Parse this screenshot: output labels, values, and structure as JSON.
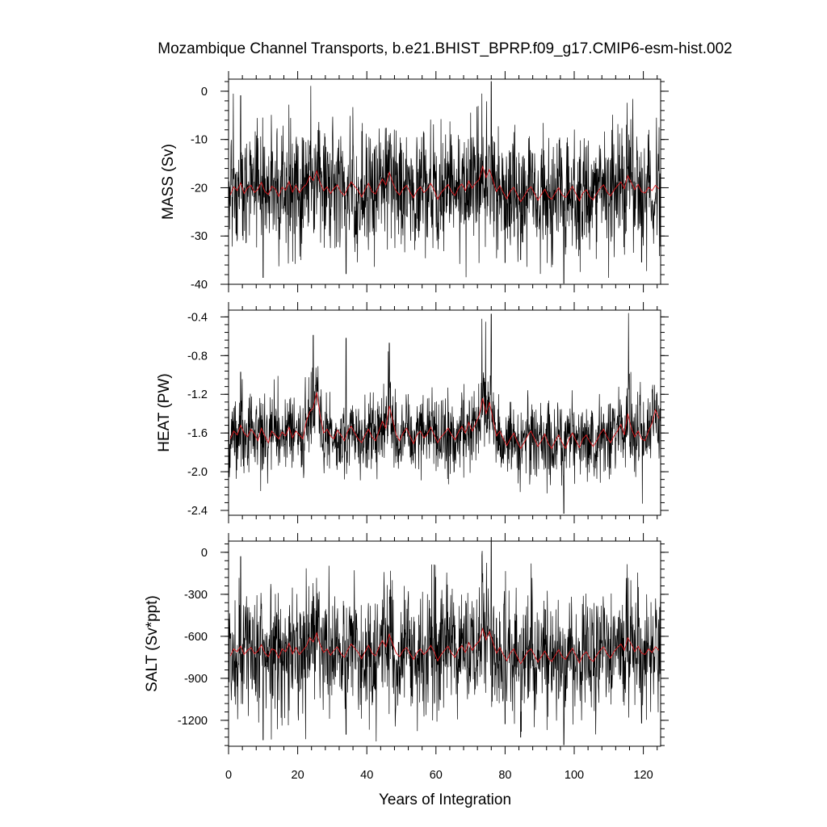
{
  "chart_data": {
    "type": "line",
    "title": "Mozambique Channel Transports, b.e21.BHIST_BPRP.f09_g17.CMIP6-esm-hist.002",
    "xlabel": "Years of Integration",
    "xlim": [
      0,
      125
    ],
    "xticks": [
      0,
      20,
      40,
      60,
      80,
      100,
      120
    ],
    "colors": {
      "monthly": "#000000",
      "annual": "#e0191e"
    },
    "panels": [
      {
        "ylabel": "MASS (Sv)",
        "ylim": [
          -40,
          2.5
        ],
        "yticks": [
          0,
          -10,
          -20,
          -30,
          -40
        ],
        "ytick_labels": [
          "0",
          "-10",
          "-20",
          "-30",
          "-40"
        ],
        "monthly_mean": -20.5,
        "monthly_sd": 6.5,
        "annual_values": [
          -21.5,
          -19.8,
          -20.6,
          -19.0,
          -21.2,
          -20.0,
          -19.5,
          -21.0,
          -20.3,
          -18.9,
          -20.8,
          -21.4,
          -19.7,
          -20.2,
          -21.8,
          -19.9,
          -20.5,
          -18.7,
          -20.9,
          -19.5,
          -21.0,
          -20.0,
          -19.3,
          -17.6,
          -18.5,
          -16.5,
          -19.0,
          -20.6,
          -19.8,
          -21.2,
          -20.1,
          -19.4,
          -20.9,
          -21.6,
          -20.0,
          -18.8,
          -19.7,
          -20.6,
          -21.9,
          -20.4,
          -19.1,
          -20.8,
          -21.3,
          -19.6,
          -18.2,
          -19.4,
          -16.8,
          -18.9,
          -20.7,
          -21.5,
          -20.2,
          -19.5,
          -20.9,
          -22.1,
          -20.6,
          -19.8,
          -21.0,
          -20.3,
          -19.1,
          -20.5,
          -22.4,
          -21.0,
          -20.2,
          -19.3,
          -20.8,
          -21.6,
          -20.0,
          -19.2,
          -20.6,
          -18.6,
          -20.1,
          -19.0,
          -18.3,
          -15.6,
          -17.9,
          -16.2,
          -18.5,
          -20.8,
          -19.6,
          -21.0,
          -22.3,
          -20.7,
          -19.9,
          -21.4,
          -22.9,
          -21.8,
          -20.5,
          -19.8,
          -21.2,
          -22.6,
          -21.4,
          -20.3,
          -21.8,
          -22.4,
          -21.1,
          -20.0,
          -21.5,
          -22.0,
          -20.8,
          -19.7,
          -21.3,
          -22.7,
          -21.1,
          -20.4,
          -21.9,
          -22.5,
          -21.2,
          -20.1,
          -19.4,
          -20.9,
          -21.7,
          -20.5,
          -19.6,
          -18.8,
          -20.2,
          -17.5,
          -18.9,
          -20.4,
          -19.3,
          -20.8,
          -21.1,
          -19.9,
          -20.6,
          -19.5,
          -20.2
        ],
        "highlights": [
          [
            3.5,
            -0.9
          ],
          [
            10,
            -38.6
          ],
          [
            17.3,
            -35.7
          ],
          [
            34,
            -37.8
          ],
          [
            73.3,
            -0.5
          ],
          [
            74.6,
            -2.1
          ],
          [
            76,
            2.0
          ],
          [
            75.8,
            -25.2
          ],
          [
            80,
            -35.5
          ],
          [
            84.5,
            -34.9
          ],
          [
            97,
            -39.8
          ],
          [
            115.3,
            -2.4
          ],
          [
            116.4,
            -5.8
          ],
          [
            119.5,
            -35.4
          ]
        ]
      },
      {
        "ylabel": "HEAT (PW)",
        "ylim": [
          -2.45,
          -0.33
        ],
        "yticks": [
          -0.4,
          -0.8,
          -1.2,
          -1.6,
          -2.0,
          -2.4
        ],
        "ytick_labels": [
          "-0.4",
          "-0.8",
          "-1.2",
          "-1.6",
          "-2.0",
          "-2.4"
        ],
        "monthly_mean": -1.65,
        "monthly_sd": 0.2,
        "annual_values": [
          -1.66,
          -1.58,
          -1.62,
          -1.52,
          -1.6,
          -1.64,
          -1.56,
          -1.61,
          -1.68,
          -1.55,
          -1.63,
          -1.7,
          -1.58,
          -1.62,
          -1.66,
          -1.59,
          -1.63,
          -1.54,
          -1.65,
          -1.58,
          -1.62,
          -1.66,
          -1.48,
          -1.38,
          -1.34,
          -1.18,
          -1.42,
          -1.6,
          -1.56,
          -1.63,
          -1.66,
          -1.57,
          -1.62,
          -1.68,
          -1.58,
          -1.53,
          -1.6,
          -1.66,
          -1.7,
          -1.62,
          -1.56,
          -1.64,
          -1.68,
          -1.58,
          -1.48,
          -1.55,
          -1.32,
          -1.47,
          -1.62,
          -1.68,
          -1.6,
          -1.55,
          -1.63,
          -1.71,
          -1.62,
          -1.58,
          -1.65,
          -1.61,
          -1.54,
          -1.62,
          -1.7,
          -1.64,
          -1.6,
          -1.55,
          -1.62,
          -1.67,
          -1.59,
          -1.53,
          -1.6,
          -1.49,
          -1.58,
          -1.5,
          -1.42,
          -1.24,
          -1.4,
          -1.28,
          -1.46,
          -1.63,
          -1.58,
          -1.66,
          -1.73,
          -1.66,
          -1.6,
          -1.69,
          -1.76,
          -1.7,
          -1.63,
          -1.58,
          -1.66,
          -1.74,
          -1.68,
          -1.61,
          -1.71,
          -1.76,
          -1.68,
          -1.62,
          -1.7,
          -1.76,
          -1.66,
          -1.6,
          -1.68,
          -1.75,
          -1.66,
          -1.62,
          -1.69,
          -1.74,
          -1.68,
          -1.61,
          -1.56,
          -1.64,
          -1.7,
          -1.63,
          -1.58,
          -1.51,
          -1.62,
          -1.4,
          -1.55,
          -1.64,
          -1.58,
          -1.66,
          -1.68,
          -1.58,
          -1.5,
          -1.36,
          -1.45
        ],
        "highlights": [
          [
            3.5,
            -0.97
          ],
          [
            9.3,
            -2.2
          ],
          [
            14.3,
            -1.01
          ],
          [
            24.5,
            -0.59
          ],
          [
            34,
            -0.62
          ],
          [
            46.5,
            -0.67
          ],
          [
            73.3,
            -0.42
          ],
          [
            74.4,
            -0.45
          ],
          [
            76,
            -0.37
          ],
          [
            84.4,
            -2.21
          ],
          [
            97,
            -2.43
          ],
          [
            115.7,
            -0.36
          ],
          [
            116.4,
            -0.97
          ],
          [
            119.7,
            -2.33
          ]
        ]
      },
      {
        "ylabel": "SALT (Sv*ppt)",
        "ylim": [
          -1385,
          80
        ],
        "yticks": [
          0,
          -300,
          -600,
          -900,
          -1200
        ],
        "ytick_labels": [
          "0",
          "-300",
          "-600",
          "-900",
          "-1200"
        ],
        "monthly_mean": -700,
        "monthly_sd": 225,
        "annual_values": [
          -740,
          -690,
          -710,
          -670,
          -730,
          -700,
          -680,
          -725,
          -705,
          -660,
          -720,
          -745,
          -690,
          -700,
          -755,
          -690,
          -710,
          -650,
          -725,
          -680,
          -730,
          -700,
          -670,
          -610,
          -640,
          -575,
          -660,
          -715,
          -690,
          -735,
          -700,
          -675,
          -725,
          -750,
          -695,
          -655,
          -685,
          -715,
          -760,
          -710,
          -665,
          -720,
          -740,
          -680,
          -630,
          -675,
          -585,
          -655,
          -720,
          -745,
          -700,
          -680,
          -725,
          -765,
          -715,
          -690,
          -730,
          -705,
          -665,
          -710,
          -775,
          -730,
          -700,
          -670,
          -720,
          -750,
          -695,
          -665,
          -715,
          -645,
          -700,
          -660,
          -635,
          -545,
          -625,
          -565,
          -645,
          -720,
          -680,
          -730,
          -775,
          -720,
          -690,
          -745,
          -795,
          -755,
          -710,
          -690,
          -735,
          -785,
          -745,
          -705,
          -755,
          -780,
          -735,
          -695,
          -745,
          -765,
          -720,
          -685,
          -740,
          -790,
          -735,
          -710,
          -760,
          -780,
          -735,
          -700,
          -675,
          -725,
          -755,
          -710,
          -680,
          -655,
          -700,
          -610,
          -655,
          -710,
          -670,
          -720,
          -730,
          -690,
          -715,
          -675,
          -700
        ],
        "highlights": [
          [
            3.5,
            -30
          ],
          [
            10,
            -1340
          ],
          [
            17.3,
            -1235
          ],
          [
            34,
            -1300
          ],
          [
            73.3,
            -20
          ],
          [
            74.6,
            -75
          ],
          [
            76,
            75
          ],
          [
            75.8,
            -880
          ],
          [
            80,
            -1225
          ],
          [
            84.5,
            -1320
          ],
          [
            97,
            -1375
          ],
          [
            115.3,
            -85
          ],
          [
            116.4,
            -200
          ],
          [
            119.5,
            -1220
          ]
        ]
      }
    ]
  }
}
